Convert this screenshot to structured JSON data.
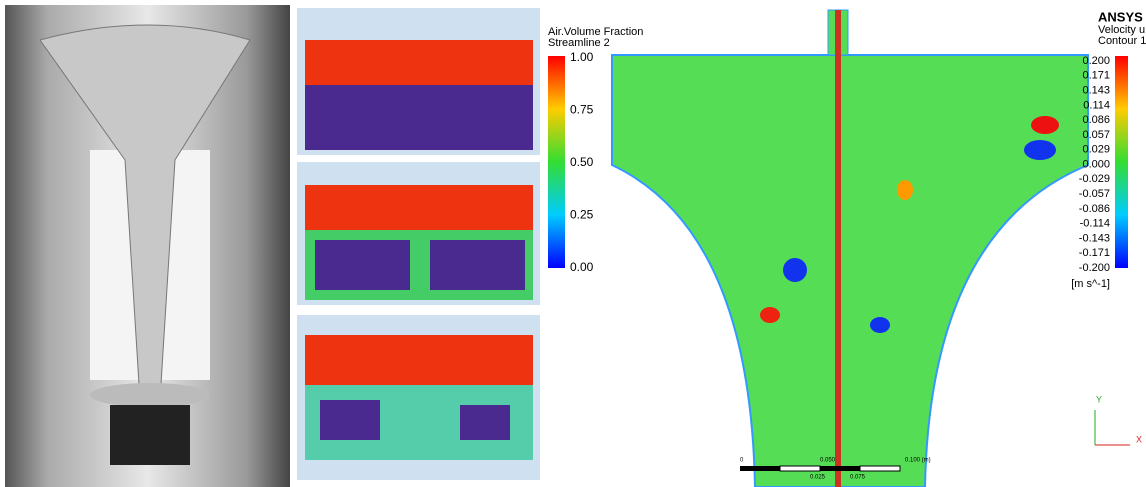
{
  "legend_left": {
    "title": "Air.Volume Fraction",
    "subtitle": "Streamline 2",
    "ticks": [
      "1.00",
      "0.75",
      "0.50",
      "0.25",
      "0.00"
    ]
  },
  "legend_right": {
    "brand": "ANSYS",
    "title": "Velocity u",
    "subtitle": "Contour 1",
    "ticks": [
      "0.200",
      "0.171",
      "0.143",
      "0.114",
      "0.086",
      "0.057",
      "0.029",
      "0.000",
      "-0.029",
      "-0.057",
      "-0.086",
      "-0.114",
      "-0.143",
      "-0.171",
      "-0.200"
    ],
    "unit": "[m s^-1]"
  },
  "scale_bar": {
    "top": [
      "0",
      "0.050",
      "0.100 (m)"
    ],
    "bottom": [
      "0.025",
      "0.075"
    ]
  },
  "axes": {
    "y": "Y",
    "x": "X"
  }
}
